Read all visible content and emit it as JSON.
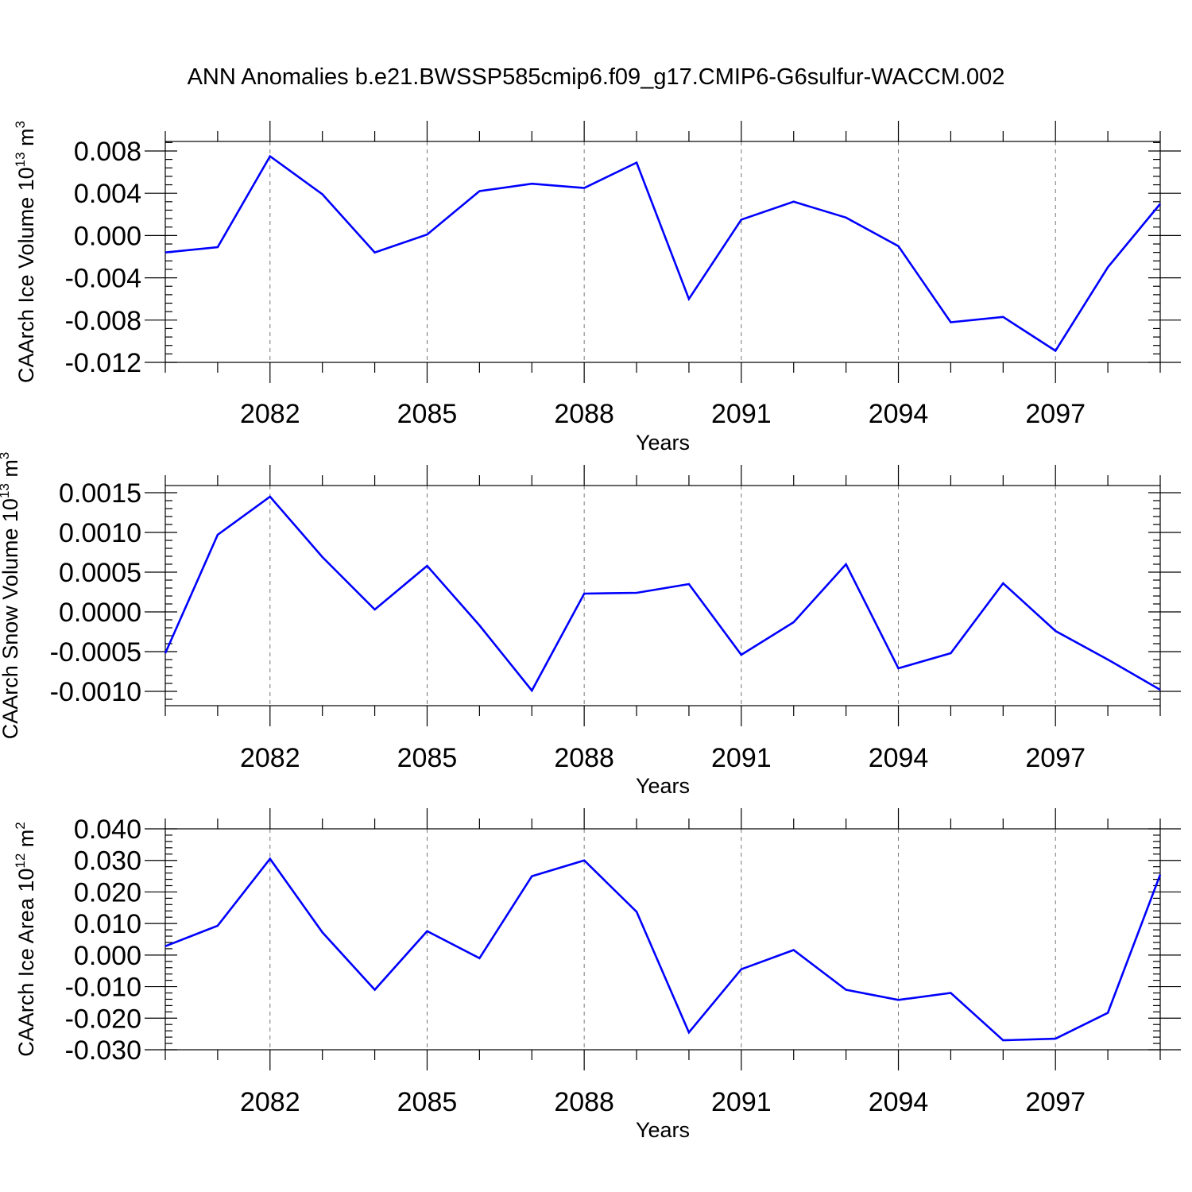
{
  "figure_title": "ANN Anomalies b.e21.BWSSP585cmip6.f09_g17.CMIP6-G6sulfur-WACCM.002",
  "colors": {
    "series": "#0000ff",
    "grid": "#777777",
    "axes": "#000000"
  },
  "chart_data": [
    {
      "type": "line",
      "xlabel": "Years",
      "ylabel": {
        "text": "CAArch Ice Volume 10",
        "sup": "13",
        "unit": " m",
        "unit_sup": "3"
      },
      "x": [
        2080,
        2081,
        2082,
        2083,
        2084,
        2085,
        2086,
        2087,
        2088,
        2089,
        2090,
        2091,
        2092,
        2093,
        2094,
        2095,
        2096,
        2097,
        2098,
        2099
      ],
      "xlim": [
        2080,
        2099
      ],
      "x_ticks": [
        2082,
        2085,
        2088,
        2091,
        2094,
        2097
      ],
      "x_tick_labels": [
        "2082",
        "2085",
        "2088",
        "2091",
        "2094",
        "2097"
      ],
      "ylim": [
        -0.012,
        0.0089
      ],
      "y_ticks": [
        -0.012,
        -0.008,
        -0.004,
        0.0,
        0.004,
        0.008
      ],
      "y_tick_labels": [
        "-0.012",
        "-0.008",
        "-0.004",
        "0.000",
        "0.004",
        "0.008"
      ],
      "y_minor_step": 0.0008,
      "grid": "vertical dashed at labeled years",
      "series": [
        {
          "values": [
            -0.0016,
            -0.0011,
            0.0075,
            0.0039,
            -0.0016,
            0.0001,
            0.0042,
            0.0049,
            0.0045,
            0.0069,
            -0.006,
            0.0015,
            0.0032,
            0.0017,
            -0.001,
            -0.0082,
            -0.0077,
            -0.0109,
            -0.003,
            0.003
          ]
        }
      ]
    },
    {
      "type": "line",
      "xlabel": "Years",
      "ylabel": {
        "text": "CAArch Snow Volume 10",
        "sup": "13",
        "unit": " m",
        "unit_sup": "3"
      },
      "x": [
        2080,
        2081,
        2082,
        2083,
        2084,
        2085,
        2086,
        2087,
        2088,
        2089,
        2090,
        2091,
        2092,
        2093,
        2094,
        2095,
        2096,
        2097,
        2098,
        2099
      ],
      "xlim": [
        2080,
        2099
      ],
      "x_ticks": [
        2082,
        2085,
        2088,
        2091,
        2094,
        2097
      ],
      "x_tick_labels": [
        "2082",
        "2085",
        "2088",
        "2091",
        "2094",
        "2097"
      ],
      "ylim": [
        -0.00118,
        0.00159
      ],
      "y_ticks": [
        -0.001,
        -0.0005,
        0.0,
        0.0005,
        0.001,
        0.0015
      ],
      "y_tick_labels": [
        "-0.0010",
        "-0.0005",
        "0.0000",
        "0.0005",
        "0.0010",
        "0.0015"
      ],
      "y_minor_step": 0.0001,
      "grid": "vertical dashed at labeled years",
      "series": [
        {
          "values": [
            -0.00052,
            0.00097,
            0.00145,
            0.00069,
            3e-05,
            0.00058,
            -0.00017,
            -0.00099,
            0.00023,
            0.00024,
            0.00035,
            -0.00054,
            -0.00013,
            0.0006,
            -0.00071,
            -0.00052,
            0.00036,
            -0.00024,
            -0.0006,
            -0.00098
          ]
        }
      ]
    },
    {
      "type": "line",
      "xlabel": "Years",
      "ylabel": {
        "text": "CAArch Ice Area 10",
        "sup": "12",
        "unit": " m",
        "unit_sup": "2"
      },
      "x": [
        2080,
        2081,
        2082,
        2083,
        2084,
        2085,
        2086,
        2087,
        2088,
        2089,
        2090,
        2091,
        2092,
        2093,
        2094,
        2095,
        2096,
        2097,
        2098,
        2099
      ],
      "xlim": [
        2080,
        2099
      ],
      "x_ticks": [
        2082,
        2085,
        2088,
        2091,
        2094,
        2097
      ],
      "x_tick_labels": [
        "2082",
        "2085",
        "2088",
        "2091",
        "2094",
        "2097"
      ],
      "ylim": [
        -0.03,
        0.04
      ],
      "y_ticks": [
        -0.03,
        -0.02,
        -0.01,
        0.0,
        0.01,
        0.02,
        0.03,
        0.04
      ],
      "y_tick_labels": [
        "-0.030",
        "-0.020",
        "-0.010",
        "0.000",
        "0.010",
        "0.020",
        "0.030",
        "0.040"
      ],
      "y_minor_step": 0.002,
      "grid": "vertical dashed at labeled years",
      "series": [
        {
          "values": [
            0.0028,
            0.0093,
            0.0305,
            0.0072,
            -0.011,
            0.0076,
            -0.001,
            0.025,
            0.03,
            0.0137,
            -0.0245,
            -0.0045,
            0.0016,
            -0.011,
            -0.0142,
            -0.012,
            -0.027,
            -0.0265,
            -0.0183,
            0.0255
          ]
        }
      ]
    }
  ]
}
